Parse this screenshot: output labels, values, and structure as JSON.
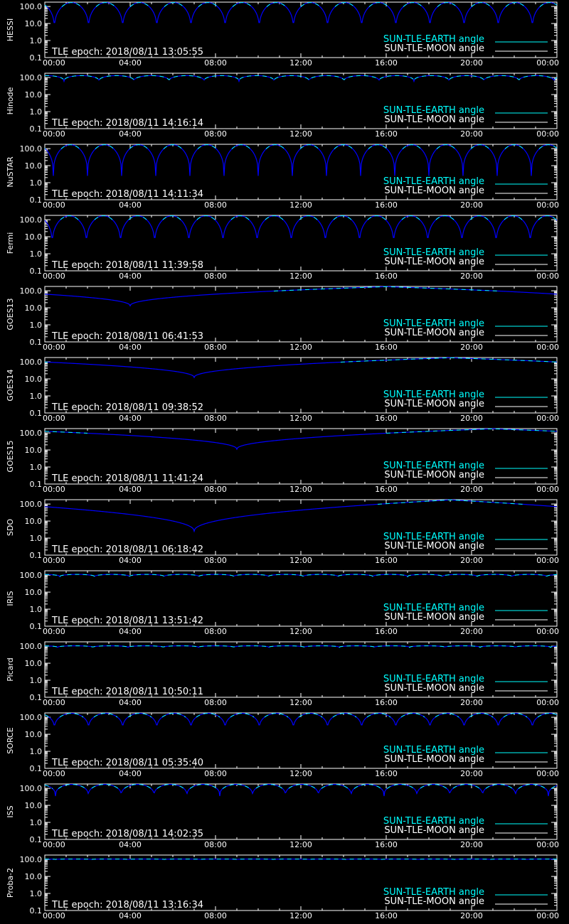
{
  "colors": {
    "background": "#000000",
    "frame": "#ffffff",
    "earth_angle": "#00ffff",
    "moon_angle": "#ffffff",
    "curve": "#0000ff"
  },
  "legend": {
    "earth": "SUN-TLE-EARTH angle",
    "moon": "SUN-TLE-MOON angle"
  },
  "chart_data": {
    "type": "line",
    "x_ticks": [
      "00:00",
      "04:00",
      "08:00",
      "12:00",
      "16:00",
      "20:00",
      "00:00"
    ],
    "x_range_hours": [
      0,
      24
    ],
    "y_ticks": [
      "100.0",
      "10.0",
      "1.0",
      "0.1"
    ],
    "y_scale": "log",
    "y_range": [
      0.1,
      180
    ],
    "grid": false,
    "legend_position": "bottom-right",
    "panels": [
      {
        "satellite": "HESSI",
        "epoch": "TLE epoch: 2018/08/11 13:05:55",
        "shape": "periodic",
        "period_h": 1.6,
        "phase_h": 0.45,
        "dip_min": 3.5,
        "peak": 170
      },
      {
        "satellite": "Hinode",
        "epoch": "TLE epoch: 2018/08/11 14:16:14",
        "shape": "periodic",
        "period_h": 1.64,
        "phase_h": 0.9,
        "dip_min": 60,
        "peak": 130
      },
      {
        "satellite": "NuSTAR",
        "epoch": "TLE epoch: 2018/08/11 14:11:34",
        "shape": "periodic",
        "period_h": 1.6,
        "phase_h": 0.4,
        "dip_min": 2.5,
        "peak": 170
      },
      {
        "satellite": "Fermi",
        "epoch": "TLE epoch: 2018/08/11 11:39:58",
        "shape": "periodic",
        "period_h": 1.6,
        "phase_h": 0.35,
        "dip_min": 2.5,
        "peak": 170
      },
      {
        "satellite": "GOES13",
        "epoch": "TLE epoch: 2018/08/11 06:41:53",
        "shape": "geo",
        "dip_h": 4.0,
        "dip_min": 13,
        "peak": 175,
        "peak_h": 16.0
      },
      {
        "satellite": "GOES14",
        "epoch": "TLE epoch: 2018/08/11 09:38:52",
        "shape": "geo",
        "dip_h": 7.0,
        "dip_min": 12,
        "peak": 175,
        "peak_h": 19.0
      },
      {
        "satellite": "GOES15",
        "epoch": "TLE epoch: 2018/08/11 11:41:24",
        "shape": "geo",
        "dip_h": 9.0,
        "dip_min": 11,
        "peak": 175,
        "peak_h": 21.0
      },
      {
        "satellite": "SDO",
        "epoch": "TLE epoch: 2018/08/11 06:18:42",
        "shape": "geo",
        "dip_h": 7.0,
        "dip_min": 2.5,
        "peak": 175,
        "peak_h": 19.0
      },
      {
        "satellite": "IRIS",
        "epoch": "TLE epoch: 2018/08/11 13:51:42",
        "shape": "periodic",
        "period_h": 1.63,
        "phase_h": 0.7,
        "dip_min": 80,
        "peak": 110
      },
      {
        "satellite": "Picard",
        "epoch": "TLE epoch: 2018/08/11 10:50:11",
        "shape": "periodic",
        "period_h": 1.65,
        "phase_h": 0.6,
        "dip_min": 85,
        "peak": 105
      },
      {
        "satellite": "SORCE",
        "epoch": "TLE epoch: 2018/08/11 05:35:40",
        "shape": "periodic",
        "period_h": 1.6,
        "phase_h": 0.45,
        "dip_min": 18,
        "peak": 170
      },
      {
        "satellite": "ISS",
        "epoch": "TLE epoch: 2018/08/11 14:02:35",
        "shape": "periodic",
        "period_h": 1.54,
        "phase_h": 0.5,
        "dip_min": 35,
        "peak": 170
      },
      {
        "satellite": "Proba-2",
        "epoch": "TLE epoch: 2018/08/11 13:16:34",
        "shape": "periodic",
        "period_h": 1.7,
        "phase_h": 0.5,
        "dip_min": 100,
        "peak": 105
      }
    ]
  }
}
